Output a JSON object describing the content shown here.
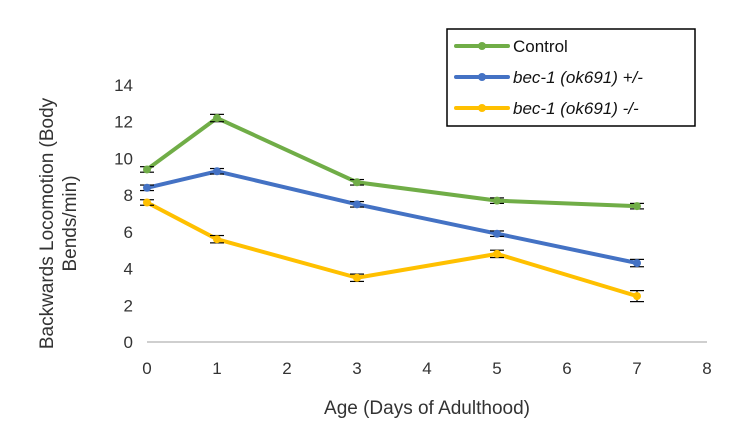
{
  "chart_data": {
    "type": "line",
    "xlabel": "Age (Days of Adulthood)",
    "ylabel_lines": [
      "Backwards Locomotion (Body",
      "Bends/min)"
    ],
    "xlim": [
      0,
      8
    ],
    "ylim": [
      0,
      14
    ],
    "x_ticks": [
      0,
      1,
      2,
      3,
      4,
      5,
      6,
      7,
      8
    ],
    "y_ticks": [
      0,
      2,
      4,
      6,
      8,
      10,
      12,
      14
    ],
    "grid": false,
    "legend_position": "top-right",
    "x": [
      0,
      1,
      3,
      5,
      7
    ],
    "series": [
      {
        "name": "Control",
        "italic": false,
        "color": "#70ad47",
        "values": [
          9.4,
          12.2,
          8.7,
          7.7,
          7.4
        ],
        "errors": [
          0.15,
          0.2,
          0.15,
          0.15,
          0.15
        ]
      },
      {
        "name": "bec-1 (ok691) +/-",
        "italic": true,
        "color": "#4472c4",
        "values": [
          8.4,
          9.3,
          7.5,
          5.9,
          4.3
        ],
        "errors": [
          0.15,
          0.15,
          0.15,
          0.15,
          0.2
        ]
      },
      {
        "name": "bec-1 (ok691) -/-",
        "italic": true,
        "color": "#ffc000",
        "values": [
          7.6,
          5.6,
          3.5,
          4.8,
          2.5
        ],
        "errors": [
          0.15,
          0.2,
          0.2,
          0.2,
          0.3
        ]
      }
    ]
  }
}
